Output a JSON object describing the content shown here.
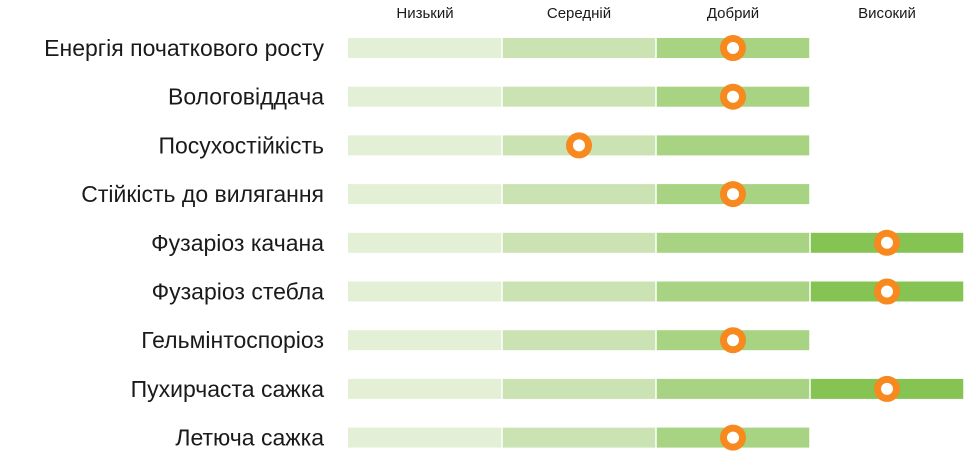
{
  "chart_data": {
    "type": "rating-scale",
    "levels": [
      "Низький",
      "Середній",
      "Добрий",
      "Високий"
    ],
    "level_colors": [
      "#e3f0d6",
      "#cbe3b3",
      "#a8d383",
      "#85c452"
    ],
    "marker_color": "#f7891f",
    "rows": [
      {
        "label": "Енергія початкового росту",
        "max_level": 3,
        "value": 2.5
      },
      {
        "label": "Вологовіддача",
        "max_level": 3,
        "value": 2.5
      },
      {
        "label": "Посухостійкість",
        "max_level": 3,
        "value": 1.5
      },
      {
        "label": "Стійкість до вилягання",
        "max_level": 3,
        "value": 2.5
      },
      {
        "label": "Фузаріоз качана",
        "max_level": 4,
        "value": 3.5
      },
      {
        "label": "Фузаріоз стебла",
        "max_level": 4,
        "value": 3.5
      },
      {
        "label": "Гельмінтоспоріоз",
        "max_level": 3,
        "value": 2.5
      },
      {
        "label": "Пухирчаста сажка",
        "max_level": 4,
        "value": 3.5
      },
      {
        "label": "Летюча сажка",
        "max_level": 3,
        "value": 2.5
      }
    ]
  }
}
